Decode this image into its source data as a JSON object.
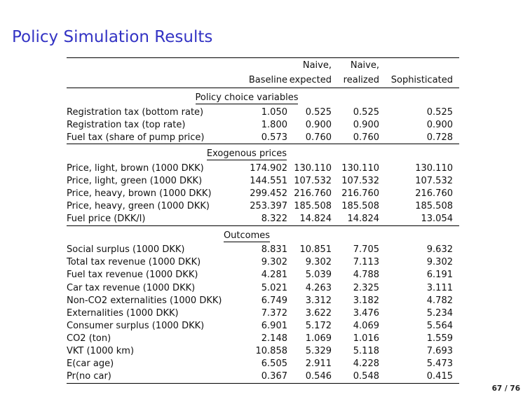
{
  "slide": {
    "title": "Policy Simulation Results",
    "title_color": "#3333c4",
    "background_color": "#ffffff",
    "text_color": "#111111"
  },
  "footer": {
    "page_label": "67 / 76"
  },
  "table": {
    "column_headers": [
      {
        "line1": "",
        "line2": ""
      },
      {
        "line1": "",
        "line2": "Baseline"
      },
      {
        "line1": "Naive,",
        "line2": "expected"
      },
      {
        "line1": "Naive,",
        "line2": "realized"
      },
      {
        "line1": "",
        "line2": "Sophisticated"
      }
    ],
    "sections": [
      {
        "title": "Policy choice variables",
        "rows": [
          {
            "label": "Registration tax (bottom rate)",
            "values": [
              "1.050",
              "0.525",
              "0.525",
              "0.525"
            ]
          },
          {
            "label": "Registration tax (top rate)",
            "values": [
              "1.800",
              "0.900",
              "0.900",
              "0.900"
            ]
          },
          {
            "label": "Fuel tax (share of pump price)",
            "values": [
              "0.573",
              "0.760",
              "0.760",
              "0.728"
            ]
          }
        ]
      },
      {
        "title": "Exogenous prices",
        "rows": [
          {
            "label": "Price, light, brown (1000 DKK)",
            "values": [
              "174.902",
              "130.110",
              "130.110",
              "130.110"
            ]
          },
          {
            "label": "Price, light, green (1000 DKK)",
            "values": [
              "144.551",
              "107.532",
              "107.532",
              "107.532"
            ]
          },
          {
            "label": "Price, heavy, brown (1000 DKK)",
            "values": [
              "299.452",
              "216.760",
              "216.760",
              "216.760"
            ]
          },
          {
            "label": "Price, heavy, green (1000 DKK)",
            "values": [
              "253.397",
              "185.508",
              "185.508",
              "185.508"
            ]
          },
          {
            "label": "Fuel price (DKK/l)",
            "values": [
              "8.322",
              "14.824",
              "14.824",
              "13.054"
            ]
          }
        ]
      },
      {
        "title": "Outcomes",
        "rows": [
          {
            "label": "Social surplus (1000 DKK)",
            "values": [
              "8.831",
              "10.851",
              "7.705",
              "9.632"
            ]
          },
          {
            "label": "Total tax revenue (1000 DKK)",
            "values": [
              "9.302",
              "9.302",
              "7.113",
              "9.302"
            ]
          },
          {
            "label": "Fuel tax revenue (1000 DKK)",
            "values": [
              "4.281",
              "5.039",
              "4.788",
              "6.191"
            ]
          },
          {
            "label": "Car tax revenue (1000 DKK)",
            "values": [
              "5.021",
              "4.263",
              "2.325",
              "3.111"
            ]
          },
          {
            "label": "Non-CO2 externalities (1000 DKK)",
            "values": [
              "6.749",
              "3.312",
              "3.182",
              "4.782"
            ]
          },
          {
            "label": "Externalities (1000 DKK)",
            "values": [
              "7.372",
              "3.622",
              "3.476",
              "5.234"
            ]
          },
          {
            "label": "Consumer surplus (1000 DKK)",
            "values": [
              "6.901",
              "5.172",
              "4.069",
              "5.564"
            ]
          },
          {
            "label": "CO2 (ton)",
            "values": [
              "2.148",
              "1.069",
              "1.016",
              "1.559"
            ]
          },
          {
            "label": "VKT (1000 km)",
            "values": [
              "10.858",
              "5.329",
              "5.118",
              "7.693"
            ]
          },
          {
            "label": "E(car age)",
            "values": [
              "6.505",
              "2.911",
              "4.228",
              "5.473"
            ]
          },
          {
            "label": "Pr(no car)",
            "values": [
              "0.367",
              "0.546",
              "0.548",
              "0.415"
            ]
          }
        ]
      }
    ]
  }
}
